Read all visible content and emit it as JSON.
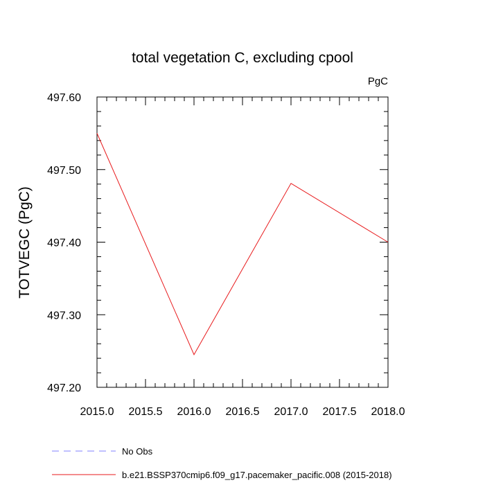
{
  "chart_data": {
    "type": "line",
    "title": "total vegetation C, excluding cpool",
    "units_label": "PgC",
    "ylabel": "TOTVEGC  (PgC)",
    "xlabel": "",
    "xlim": [
      2015.0,
      2018.0
    ],
    "ylim": [
      497.2,
      497.6
    ],
    "x_ticks": [
      "2015.0",
      "2015.5",
      "2016.0",
      "2016.5",
      "2017.0",
      "2017.5",
      "2018.0"
    ],
    "x_tick_values": [
      2015.0,
      2015.5,
      2016.0,
      2016.5,
      2017.0,
      2017.5,
      2018.0
    ],
    "y_ticks": [
      "497.20",
      "497.30",
      "497.40",
      "497.50",
      "497.60"
    ],
    "y_tick_values": [
      497.2,
      497.3,
      497.4,
      497.5,
      497.6
    ],
    "grid": false,
    "legend_position": "bottom",
    "series": [
      {
        "name": "b.e21.BSSP370cmip6.f09_g17.pacemaker_pacific.008 (2015-2018)",
        "color": "#e8191b",
        "style": "solid",
        "x": [
          2015.0,
          2016.0,
          2017.0,
          2018.0
        ],
        "values": [
          497.55,
          497.245,
          497.481,
          497.4
        ]
      }
    ],
    "legend": [
      {
        "label": "No Obs",
        "color": "#8080ff",
        "style": "dashed"
      },
      {
        "label": "b.e21.BSSP370cmip6.f09_g17.pacemaker_pacific.008 (2015-2018)",
        "color": "#e8191b",
        "style": "solid"
      }
    ]
  }
}
